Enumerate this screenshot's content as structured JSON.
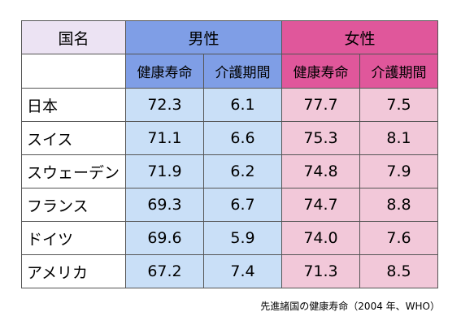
{
  "chart_data": {
    "type": "table",
    "headers": {
      "country": "国名",
      "male": "男性",
      "female": "女性",
      "life_expectancy": "健康寿命",
      "care_period": "介護期間"
    },
    "rows": [
      {
        "country": "日本",
        "male_life": "72.3",
        "male_care": "6.1",
        "female_life": "77.7",
        "female_care": "7.5"
      },
      {
        "country": "スイス",
        "male_life": "71.1",
        "male_care": "6.6",
        "female_life": "75.3",
        "female_care": "8.1"
      },
      {
        "country": "スウェーデン",
        "male_life": "71.9",
        "male_care": "6.2",
        "female_life": "74.8",
        "female_care": "7.9"
      },
      {
        "country": "フランス",
        "male_life": "69.3",
        "male_care": "6.7",
        "female_life": "74.7",
        "female_care": "8.8"
      },
      {
        "country": "ドイツ",
        "male_life": "69.6",
        "male_care": "5.9",
        "female_life": "74.0",
        "female_care": "7.6"
      },
      {
        "country": "アメリカ",
        "male_life": "67.2",
        "male_care": "7.4",
        "female_life": "71.3",
        "female_care": "8.5"
      }
    ],
    "caption": "先進諸国の健康寿命（2004 年、WHO）",
    "colors": {
      "male_header": "#7f9ee6",
      "male_cells": "#c9dff7",
      "female_header": "#e0579b",
      "female_cells": "#f2c8d9",
      "country_header": "#ece3f3"
    }
  }
}
